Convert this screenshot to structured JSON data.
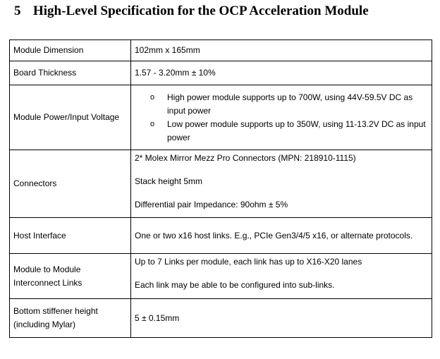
{
  "section": {
    "number": "5",
    "title": "High-Level Specification for the OCP Acceleration Module"
  },
  "rows": [
    {
      "label": "Module Dimension",
      "value": "102mm x 165mm"
    },
    {
      "label": "Board Thickness",
      "value": "1.57 - 3.20mm ± 10%"
    },
    {
      "label": "Module Power/Input Voltage",
      "bullets": [
        "High power module supports up to 700W, using 44V-59.5V DC as input power",
        "Low power module supports up to 350W, using 11-13.2V DC as input power"
      ]
    },
    {
      "label": "Connectors",
      "paragraphs": [
        "2* Molex Mirror Mezz Pro Connectors (MPN: 218910-1115)",
        "Stack height 5mm",
        "Differential pair Impedance: 90ohm ± 5%"
      ]
    },
    {
      "label": "Host Interface",
      "value": "One or two x16 host links. E.g., PCIe Gen3/4/5 x16, or alternate protocols."
    },
    {
      "label": "Module to Module Interconnect Links",
      "paragraphs": [
        "Up to 7 Links per module, each link has up to X16-X20 lanes",
        "Each link may be able to be configured into sub-links."
      ]
    },
    {
      "label": "Bottom stiffener height (including Mylar)",
      "value": "5 ± 0.15mm"
    }
  ],
  "bullet_glyph": "o"
}
